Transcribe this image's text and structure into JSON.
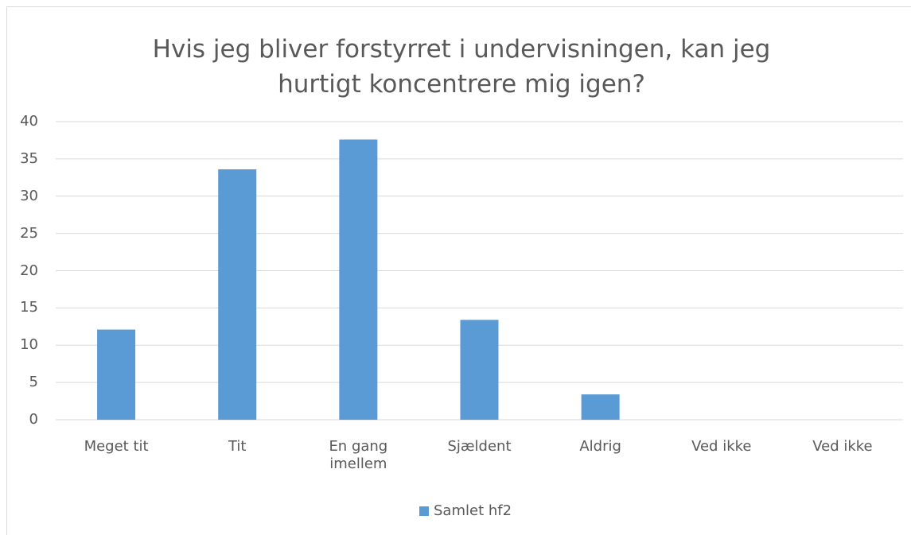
{
  "chart_data": {
    "type": "bar",
    "title": "Hvis jeg bliver forstyrret i undervisningen, kan jeg hurtigt koncentrere mig igen?",
    "categories": [
      "Meget tit",
      "Tit",
      "En gang imellem",
      "Sjældent",
      "Aldrig",
      "Ved ikke",
      "Ved ikke"
    ],
    "series": [
      {
        "name": "Samlet hf2",
        "color": "#5b9bd5",
        "values": [
          12.1,
          33.6,
          37.6,
          13.4,
          3.4,
          0,
          0
        ]
      }
    ],
    "ylim": [
      0,
      40
    ],
    "yticks": [
      0,
      5,
      10,
      15,
      20,
      25,
      30,
      35,
      40
    ],
    "grid": true,
    "legend": "bottom"
  }
}
